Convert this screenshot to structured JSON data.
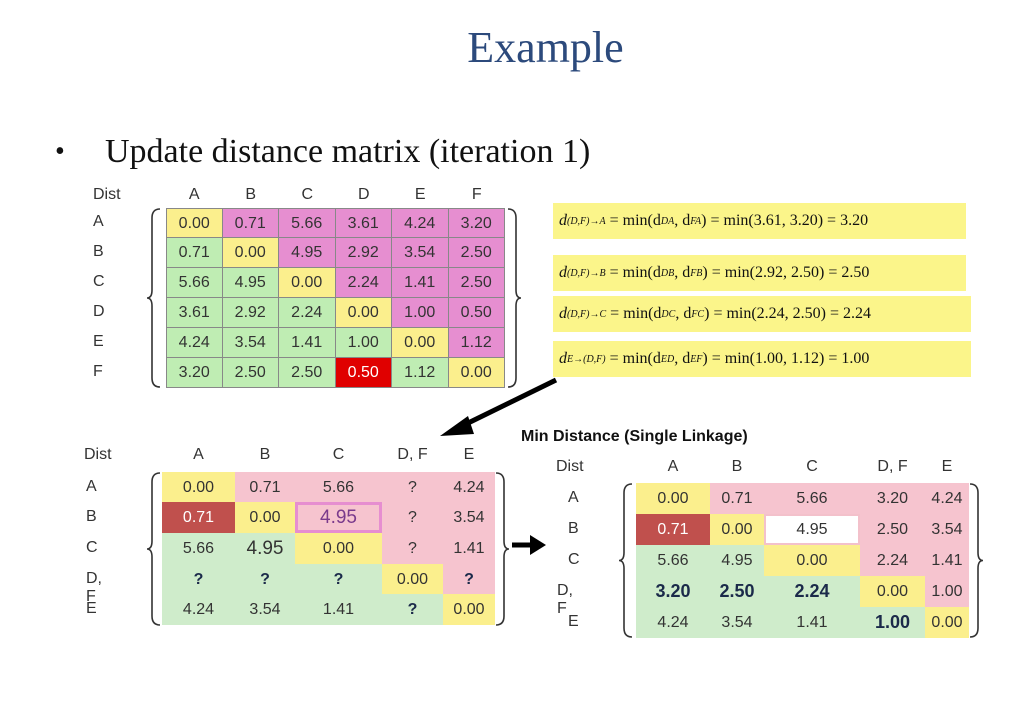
{
  "slide": {
    "title": "Example",
    "bullet": "Update distance matrix (iteration 1)"
  },
  "colors": {
    "title": "#2c4a7c",
    "yellow": "#fbef8d",
    "pink": "#e68ed0",
    "green": "#bfedb3",
    "red": "#e00000",
    "lightpink": "#f6c4cf",
    "lightgreen": "#cfeccb",
    "darkred": "#c0504d",
    "formula_bg": "#fbf58a"
  },
  "matrix1": {
    "corner": "Dist",
    "cols": [
      "A",
      "B",
      "C",
      "D",
      "E",
      "F"
    ],
    "rows": [
      "A",
      "B",
      "C",
      "D",
      "E",
      "F"
    ],
    "values": [
      [
        "0.00",
        "0.71",
        "5.66",
        "3.61",
        "4.24",
        "3.20"
      ],
      [
        "0.71",
        "0.00",
        "4.95",
        "2.92",
        "3.54",
        "2.50"
      ],
      [
        "5.66",
        "4.95",
        "0.00",
        "2.24",
        "1.41",
        "2.50"
      ],
      [
        "3.61",
        "2.92",
        "2.24",
        "0.00",
        "1.00",
        "0.50"
      ],
      [
        "4.24",
        "3.54",
        "1.41",
        "1.00",
        "0.00",
        "1.12"
      ],
      [
        "3.20",
        "2.50",
        "2.50",
        "0.50",
        "1.12",
        "0.00"
      ]
    ]
  },
  "formulas": [
    {
      "lhs": "d",
      "sub": "(D,F)→A",
      "mid": "= min(d",
      "s1": "DA",
      "c": ", d",
      "s2": "FA",
      "rest": ") = min(3.61, 3.20) = 3.20"
    },
    {
      "lhs": "d",
      "sub": "(D,F)→B",
      "mid": "= min(d",
      "s1": "DB",
      "c": ", d",
      "s2": "FB",
      "rest": ") = min(2.92, 2.50) = 2.50"
    },
    {
      "lhs": "d",
      "sub": "(D,F)→C",
      "mid": "= min(d",
      "s1": "DC",
      "c": ", d",
      "s2": "FC",
      "rest": ") = min(2.24, 2.50) = 2.24"
    },
    {
      "lhs": "d",
      "sub": "E→(D,F)",
      "mid": "= min(d",
      "s1": "ED",
      "c": ", d",
      "s2": "EF",
      "rest": ") = min(1.00, 1.12) = 1.00"
    }
  ],
  "matrix2": {
    "corner": "Dist",
    "cols": [
      "A",
      "B",
      "C",
      "D, F",
      "E"
    ],
    "rows": [
      "A",
      "B",
      "C",
      "D, F",
      "E"
    ],
    "values": [
      [
        "0.00",
        "0.71",
        "5.66",
        "?",
        "4.24"
      ],
      [
        "0.71",
        "0.00",
        "4.95",
        "?",
        "3.54"
      ],
      [
        "5.66",
        "4.95",
        "0.00",
        "?",
        "1.41"
      ],
      [
        "?",
        "?",
        "?",
        "0.00",
        "?"
      ],
      [
        "4.24",
        "3.54",
        "1.41",
        "?",
        "0.00"
      ]
    ]
  },
  "matrix3": {
    "title": "Min Distance (Single Linkage)",
    "corner": "Dist",
    "cols": [
      "A",
      "B",
      "C",
      "D, F",
      "E"
    ],
    "rows": [
      "A",
      "B",
      "C",
      "D, F",
      "E"
    ],
    "values": [
      [
        "0.00",
        "0.71",
        "5.66",
        "3.20",
        "4.24"
      ],
      [
        "0.71",
        "0.00",
        "4.95",
        "2.50",
        "3.54"
      ],
      [
        "5.66",
        "4.95",
        "0.00",
        "2.24",
        "1.41"
      ],
      [
        "3.20",
        "2.50",
        "2.24",
        "0.00",
        "1.00"
      ],
      [
        "4.24",
        "3.54",
        "1.41",
        "1.00",
        "0.00"
      ]
    ]
  }
}
